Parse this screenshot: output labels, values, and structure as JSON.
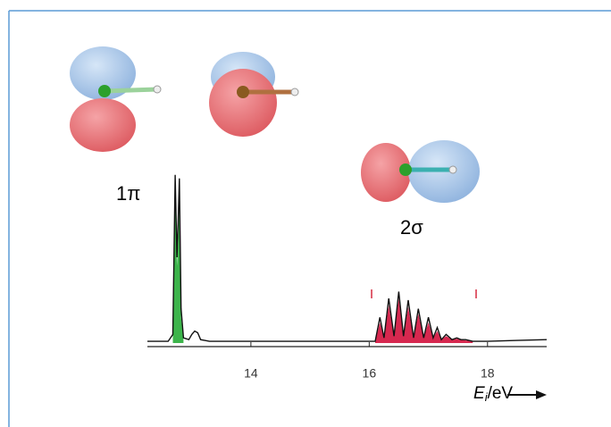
{
  "chart_data": {
    "type": "line",
    "annotations": [
      "1π",
      "2σ"
    ],
    "x_label": {
      "symbol": "E",
      "subscript": "i",
      "unit": "/eV"
    },
    "xlim": [
      12.25,
      19
    ],
    "xticks": [
      14,
      16,
      18
    ],
    "ylim": [
      0,
      1
    ],
    "series": [
      {
        "color": "#111111",
        "fill": false,
        "x": [
          12.25,
          12.6,
          12.68,
          12.72,
          12.75,
          12.77,
          12.79,
          12.82,
          12.86,
          12.95,
          13.0,
          13.05,
          13.1,
          13.15,
          13.3,
          14,
          15,
          15.5,
          16.1,
          16.18,
          16.25,
          16.33,
          16.42,
          16.5,
          16.58,
          16.66,
          16.75,
          16.83,
          16.92,
          17.0,
          17.08,
          17.15,
          17.22,
          17.3,
          17.4,
          17.48,
          17.55,
          17.63,
          17.75,
          18,
          18.5,
          19
        ],
        "values": [
          0.01,
          0.01,
          0.05,
          0.98,
          0.5,
          0.7,
          0.96,
          0.2,
          0.03,
          0.02,
          0.05,
          0.07,
          0.06,
          0.02,
          0.01,
          0.01,
          0.01,
          0.01,
          0.01,
          0.15,
          0.03,
          0.26,
          0.04,
          0.3,
          0.04,
          0.25,
          0.03,
          0.2,
          0.03,
          0.15,
          0.03,
          0.09,
          0.02,
          0.05,
          0.02,
          0.03,
          0.02,
          0.02,
          0.01,
          0.01,
          0.015,
          0.02
        ]
      },
      {
        "color": "#3cb44b",
        "fill": true,
        "x": [
          12.68,
          12.72,
          12.75,
          12.77,
          12.79,
          12.82,
          12.86
        ],
        "values": [
          0.04,
          0.85,
          0.45,
          0.6,
          0.8,
          0.15,
          0.02
        ]
      },
      {
        "color": "#d6284f",
        "fill": true,
        "x": [
          16.1,
          16.18,
          16.25,
          16.33,
          16.42,
          16.5,
          16.58,
          16.66,
          16.75,
          16.83,
          16.92,
          17.0,
          17.08,
          17.15,
          17.22,
          17.3,
          17.4,
          17.48,
          17.55,
          17.63,
          17.75
        ],
        "values": [
          0.01,
          0.12,
          0.03,
          0.22,
          0.04,
          0.26,
          0.04,
          0.21,
          0.03,
          0.17,
          0.03,
          0.12,
          0.03,
          0.07,
          0.02,
          0.04,
          0.02,
          0.025,
          0.02,
          0.015,
          0.01
        ]
      }
    ]
  }
}
